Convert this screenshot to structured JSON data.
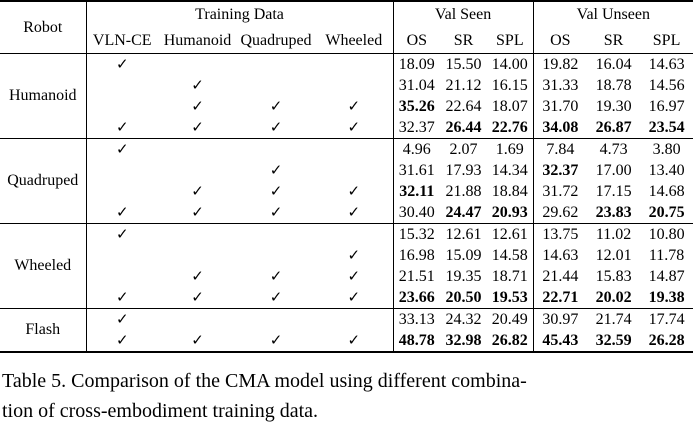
{
  "colors": {
    "text": "#000000",
    "background": "#ffffff",
    "rule": "#000000"
  },
  "icons": {
    "check": "✓"
  },
  "table": {
    "header": {
      "robot": "Robot",
      "training_data": "Training Data",
      "val_seen": "Val Seen",
      "val_unseen": "Val Unseen",
      "training_cols": [
        "VLN-CE",
        "Humanoid",
        "Quadruped",
        "Wheeled"
      ],
      "metric_cols": [
        "OS",
        "SR",
        "SPL"
      ]
    },
    "groups": [
      {
        "robot": "Humanoid",
        "rows": [
          {
            "checks": [
              1,
              0,
              0,
              0
            ],
            "values": [
              "18.09",
              "15.50",
              "14.00",
              "19.82",
              "16.04",
              "14.63"
            ],
            "bold": [
              0,
              0,
              0,
              0,
              0,
              0
            ]
          },
          {
            "checks": [
              0,
              1,
              0,
              0
            ],
            "values": [
              "31.04",
              "21.12",
              "16.15",
              "31.33",
              "18.78",
              "14.56"
            ],
            "bold": [
              0,
              0,
              0,
              0,
              0,
              0
            ]
          },
          {
            "checks": [
              0,
              1,
              1,
              1
            ],
            "values": [
              "35.26",
              "22.64",
              "18.07",
              "31.70",
              "19.30",
              "16.97"
            ],
            "bold": [
              1,
              0,
              0,
              0,
              0,
              0
            ]
          },
          {
            "checks": [
              1,
              1,
              1,
              1
            ],
            "values": [
              "32.37",
              "26.44",
              "22.76",
              "34.08",
              "26.87",
              "23.54"
            ],
            "bold": [
              0,
              1,
              1,
              1,
              1,
              1
            ]
          }
        ]
      },
      {
        "robot": "Quadruped",
        "rows": [
          {
            "checks": [
              1,
              0,
              0,
              0
            ],
            "values": [
              "4.96",
              "2.07",
              "1.69",
              "7.84",
              "4.73",
              "3.80"
            ],
            "bold": [
              0,
              0,
              0,
              0,
              0,
              0
            ]
          },
          {
            "checks": [
              0,
              0,
              1,
              0
            ],
            "values": [
              "31.61",
              "17.93",
              "14.34",
              "32.37",
              "17.00",
              "13.40"
            ],
            "bold": [
              0,
              0,
              0,
              1,
              0,
              0
            ]
          },
          {
            "checks": [
              0,
              1,
              1,
              1
            ],
            "values": [
              "32.11",
              "21.88",
              "18.84",
              "31.72",
              "17.15",
              "14.68"
            ],
            "bold": [
              1,
              0,
              0,
              0,
              0,
              0
            ]
          },
          {
            "checks": [
              1,
              1,
              1,
              1
            ],
            "values": [
              "30.40",
              "24.47",
              "20.93",
              "29.62",
              "23.83",
              "20.75"
            ],
            "bold": [
              0,
              1,
              1,
              0,
              1,
              1
            ]
          }
        ]
      },
      {
        "robot": "Wheeled",
        "rows": [
          {
            "checks": [
              1,
              0,
              0,
              0
            ],
            "values": [
              "15.32",
              "12.61",
              "12.61",
              "13.75",
              "11.02",
              "10.80"
            ],
            "bold": [
              0,
              0,
              0,
              0,
              0,
              0
            ]
          },
          {
            "checks": [
              0,
              0,
              0,
              1
            ],
            "values": [
              "16.98",
              "15.09",
              "14.58",
              "14.63",
              "12.01",
              "11.78"
            ],
            "bold": [
              0,
              0,
              0,
              0,
              0,
              0
            ]
          },
          {
            "checks": [
              0,
              1,
              1,
              1
            ],
            "values": [
              "21.51",
              "19.35",
              "18.71",
              "21.44",
              "15.83",
              "14.87"
            ],
            "bold": [
              0,
              0,
              0,
              0,
              0,
              0
            ]
          },
          {
            "checks": [
              1,
              1,
              1,
              1
            ],
            "values": [
              "23.66",
              "20.50",
              "19.53",
              "22.71",
              "20.02",
              "19.38"
            ],
            "bold": [
              1,
              1,
              1,
              1,
              1,
              1
            ]
          }
        ]
      },
      {
        "robot": "Flash",
        "rows": [
          {
            "checks": [
              1,
              0,
              0,
              0
            ],
            "values": [
              "33.13",
              "24.32",
              "20.49",
              "30.97",
              "21.74",
              "17.74"
            ],
            "bold": [
              0,
              0,
              0,
              0,
              0,
              0
            ]
          },
          {
            "checks": [
              1,
              1,
              1,
              1
            ],
            "values": [
              "48.78",
              "32.98",
              "26.82",
              "45.43",
              "32.59",
              "26.28"
            ],
            "bold": [
              1,
              1,
              1,
              1,
              1,
              1
            ]
          }
        ]
      }
    ]
  },
  "caption": {
    "line1": "Table 5. Comparison of the CMA model using different combina-",
    "line2": "tion of cross-embodiment training data."
  }
}
